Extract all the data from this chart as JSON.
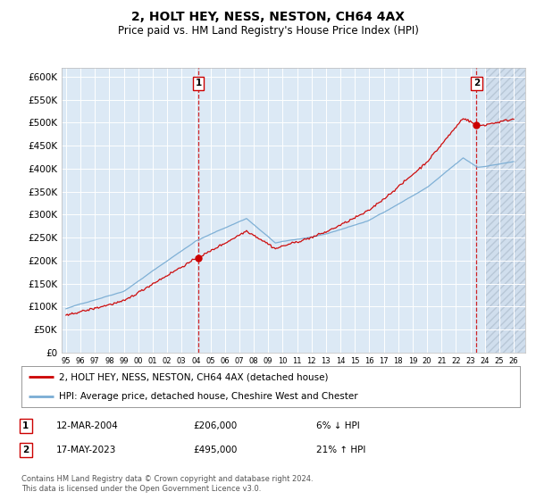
{
  "title": "2, HOLT HEY, NESS, NESTON, CH64 4AX",
  "subtitle": "Price paid vs. HM Land Registry's House Price Index (HPI)",
  "ylim": [
    0,
    620000
  ],
  "yticks": [
    0,
    50000,
    100000,
    150000,
    200000,
    250000,
    300000,
    350000,
    400000,
    450000,
    500000,
    550000,
    600000
  ],
  "ytick_labels": [
    "£0",
    "£50K",
    "£100K",
    "£150K",
    "£200K",
    "£250K",
    "£300K",
    "£350K",
    "£400K",
    "£450K",
    "£500K",
    "£550K",
    "£600K"
  ],
  "hpi_color": "#7aadd4",
  "price_color": "#cc0000",
  "sale1_date": 2004.2,
  "sale1_price": 206000,
  "sale2_date": 2023.38,
  "sale2_price": 495000,
  "legend_line1": "2, HOLT HEY, NESS, NESTON, CH64 4AX (detached house)",
  "legend_line2": "HPI: Average price, detached house, Cheshire West and Chester",
  "table_row1": [
    "1",
    "12-MAR-2004",
    "£206,000",
    "6% ↓ HPI"
  ],
  "table_row2": [
    "2",
    "17-MAY-2023",
    "£495,000",
    "21% ↑ HPI"
  ],
  "footnote1": "Contains HM Land Registry data © Crown copyright and database right 2024.",
  "footnote2": "This data is licensed under the Open Government Licence v3.0.",
  "plot_bg": "#dce9f5",
  "grid_color": "#ffffff",
  "xlim_start": 1994.7,
  "xlim_end": 2026.8
}
